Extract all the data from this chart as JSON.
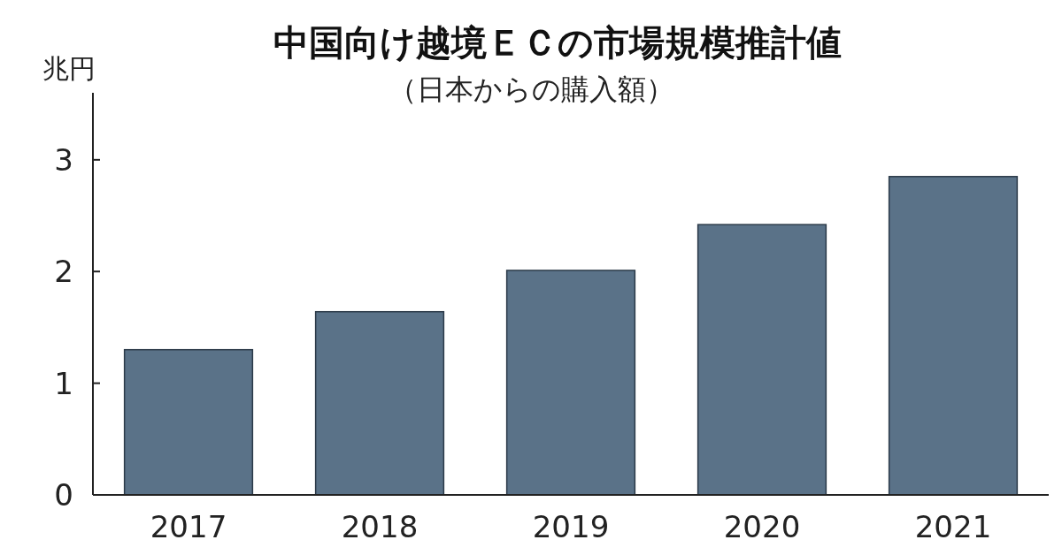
{
  "chart_data": {
    "type": "bar",
    "title": "中国向け越境ＥＣの市場規模推計値",
    "subtitle": "（日本からの購入額）",
    "ylabel": "兆円",
    "categories": [
      "2017",
      "2018",
      "2019",
      "2020",
      "2021"
    ],
    "values": [
      1.3,
      1.64,
      2.01,
      2.42,
      2.85
    ],
    "color": "#5a7288",
    "ylim": [
      0,
      3.6
    ],
    "yticks": [
      0,
      1,
      2,
      3
    ]
  }
}
